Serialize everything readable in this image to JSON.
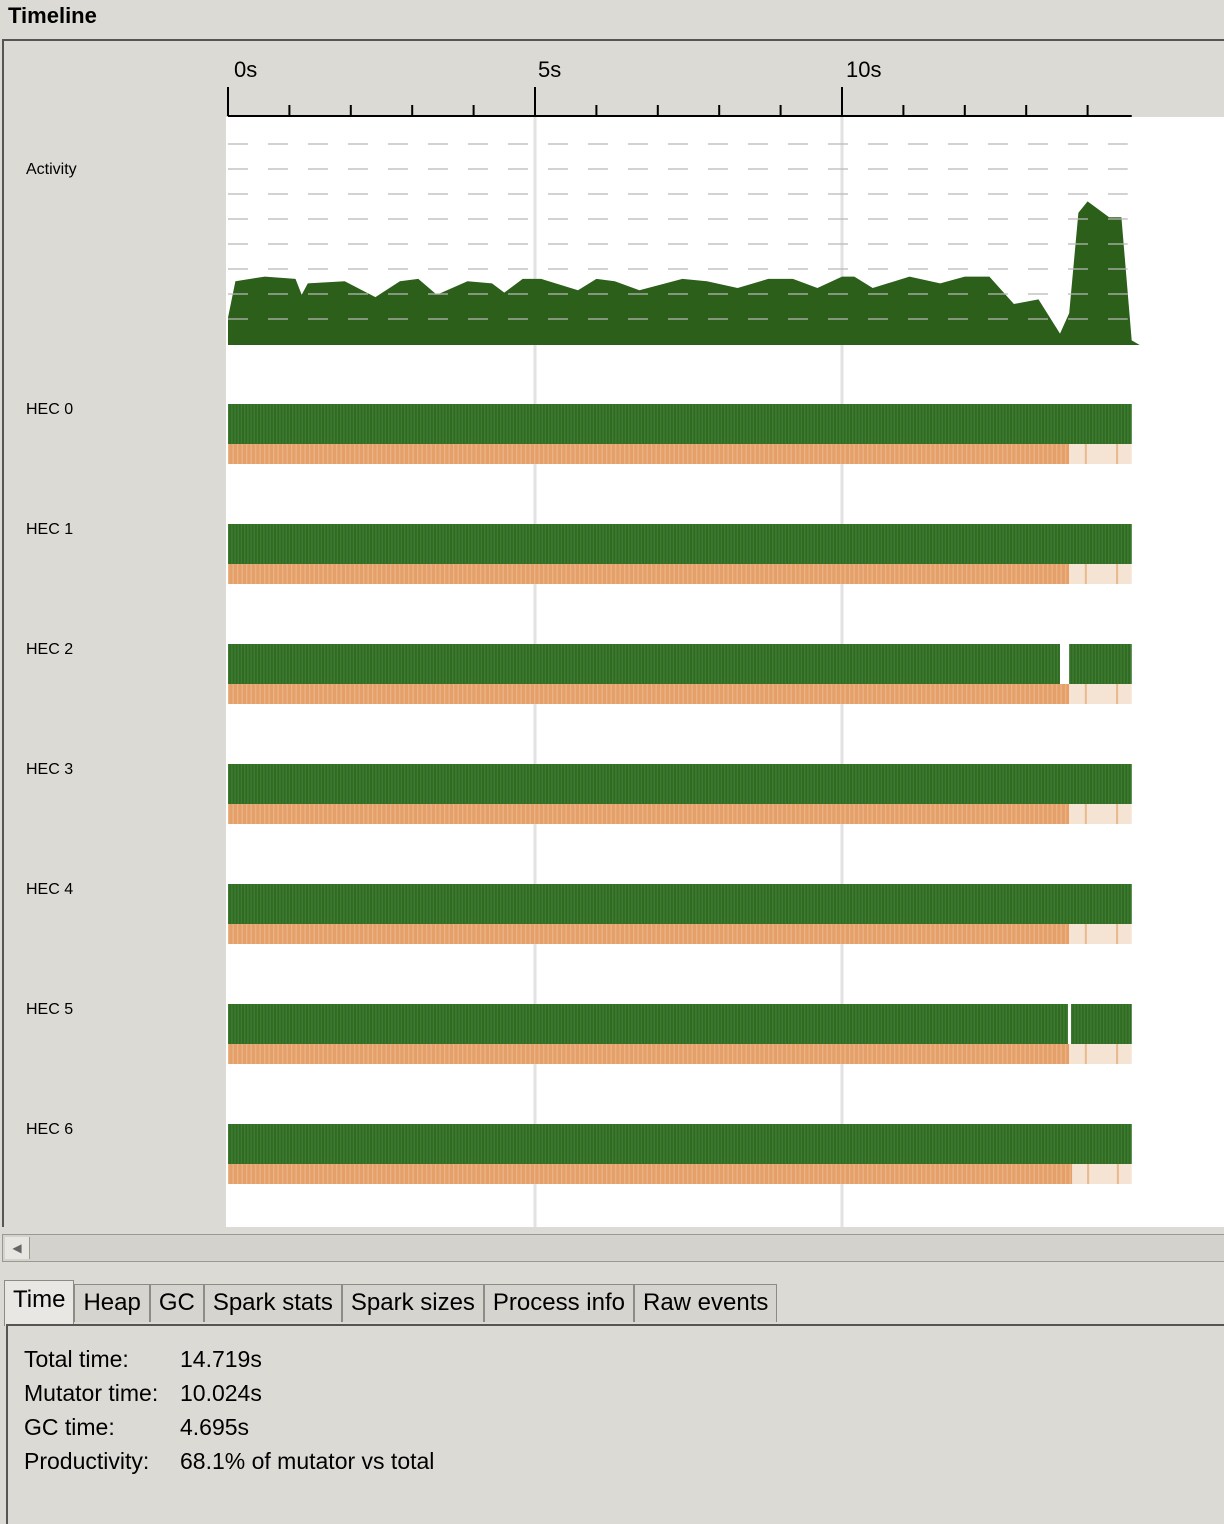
{
  "window": {
    "title": "Timeline"
  },
  "timeline": {
    "time_axis": {
      "labels": [
        "0s",
        "5s",
        "10s"
      ],
      "label_seconds": [
        0,
        5,
        10
      ],
      "minor_tick_seconds": 1,
      "end_seconds": 14.719
    },
    "rows": [
      {
        "label": "Activity"
      },
      {
        "label": "HEC 0"
      },
      {
        "label": "HEC 1"
      },
      {
        "label": "HEC 2"
      },
      {
        "label": "HEC 3"
      },
      {
        "label": "HEC 4"
      },
      {
        "label": "HEC 5"
      },
      {
        "label": "HEC 6"
      }
    ],
    "colors": {
      "activity": "#2c5f1a",
      "mutator": "#306b24",
      "gc": "#e5a06a",
      "gc_light": "#f5e3d3",
      "gridline": "#e2e2e2",
      "dashes": "#b8b8b8"
    },
    "activity_profile": {
      "description_units": "seconds vs fraction of capacity",
      "t": [
        0,
        0.12,
        0.6,
        1.1,
        1.2,
        1.3,
        1.9,
        2.4,
        2.8,
        3.1,
        3.4,
        3.9,
        4.3,
        4.5,
        4.8,
        5.1,
        5.7,
        6.0,
        6.3,
        6.7,
        7.4,
        7.8,
        8.3,
        8.8,
        9.2,
        9.6,
        10.0,
        10.2,
        10.5,
        11.1,
        11.6,
        12.0,
        12.4,
        12.8,
        13.2,
        13.55,
        13.7,
        13.85,
        14.0,
        14.35,
        14.55,
        14.719
      ],
      "level": [
        0.12,
        0.28,
        0.3,
        0.29,
        0.22,
        0.27,
        0.28,
        0.21,
        0.28,
        0.29,
        0.22,
        0.28,
        0.27,
        0.23,
        0.29,
        0.29,
        0.24,
        0.29,
        0.28,
        0.24,
        0.29,
        0.28,
        0.25,
        0.29,
        0.29,
        0.25,
        0.3,
        0.3,
        0.25,
        0.3,
        0.27,
        0.3,
        0.3,
        0.18,
        0.2,
        0.05,
        0.14,
        0.58,
        0.63,
        0.56,
        0.56,
        0.02
      ]
    },
    "hecs": [
      {
        "name": "HEC 0",
        "gaps_seconds": [],
        "gc_light_from_seconds": 13.7
      },
      {
        "name": "HEC 1",
        "gaps_seconds": [],
        "gc_light_from_seconds": 13.7
      },
      {
        "name": "HEC 2",
        "gaps_seconds": [
          [
            13.55,
            13.7
          ]
        ],
        "gc_light_from_seconds": 13.7
      },
      {
        "name": "HEC 3",
        "gaps_seconds": [],
        "gc_light_from_seconds": 13.7
      },
      {
        "name": "HEC 4",
        "gaps_seconds": [],
        "gc_light_from_seconds": 13.7
      },
      {
        "name": "HEC 5",
        "gaps_seconds": [
          [
            13.68,
            13.73
          ]
        ],
        "gc_light_from_seconds": 13.7
      },
      {
        "name": "HEC 6",
        "gaps_seconds": [],
        "gc_light_from_seconds": 13.75
      }
    ]
  },
  "tabs": [
    "Time",
    "Heap",
    "GC",
    "Spark stats",
    "Spark sizes",
    "Process info",
    "Raw events"
  ],
  "active_tab": "Time",
  "stats": [
    {
      "key": "Total time:",
      "value": "14.719s"
    },
    {
      "key": "Mutator time:",
      "value": "10.024s"
    },
    {
      "key": "GC time:",
      "value": "4.695s"
    },
    {
      "key": "Productivity:",
      "value": "68.1% of mutator vs total"
    }
  ]
}
